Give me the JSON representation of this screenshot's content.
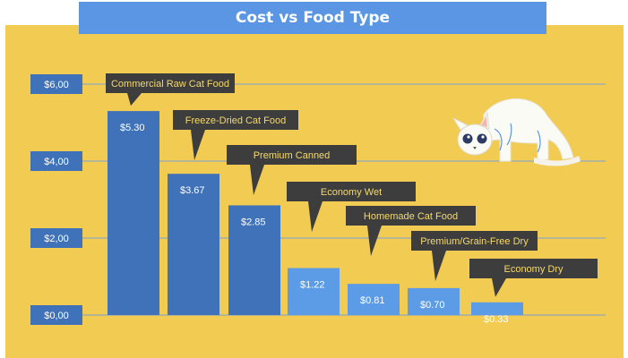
{
  "title": "Cost vs Food Type",
  "colors": {
    "background": "#f1cb52",
    "title_bar": "#5b96e4",
    "bar_dark": "#3f72b8",
    "bar_light": "#5c9be6",
    "label_box": "#3d3d3d",
    "label_text": "#f5d96c",
    "grid": "#7aa2d8",
    "tick_box": "#3f72b8"
  },
  "chart_data": {
    "type": "bar",
    "title": "Cost vs Food Type",
    "categories": [
      "Commercial Raw Cat Food",
      "Freeze-Dried Cat Food",
      "Premium Canned",
      "Economy Wet",
      "Homemade Cat Food",
      "Premium/Grain-Free Dry",
      "Economy Dry"
    ],
    "values": [
      5.3,
      3.67,
      2.85,
      1.22,
      0.81,
      0.7,
      0.33
    ],
    "value_labels": [
      "$5.30",
      "$3.67",
      "$2.85",
      "$1.22",
      "$0.81",
      "$0.70",
      "$0.33"
    ],
    "yticks": [
      0,
      2,
      4,
      6
    ],
    "ytick_labels": [
      "$0,00",
      "$2,00",
      "$4,00",
      "$6,00"
    ],
    "ylim": [
      0,
      6
    ],
    "grid": true
  }
}
